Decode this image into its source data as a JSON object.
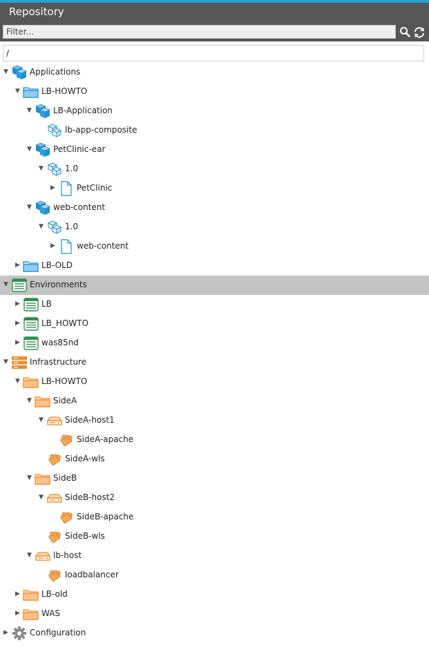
{
  "header": {
    "title": "Repository"
  },
  "filter": {
    "placeholder": "Filter..."
  },
  "path": {
    "value": "/"
  },
  "tree": [
    {
      "label": "Applications",
      "depth": 0,
      "icon": "application-icon",
      "expanded": true
    },
    {
      "label": "LB-HOWTO",
      "depth": 1,
      "icon": "blue-folder-icon",
      "expanded": true
    },
    {
      "label": "LB-Application",
      "depth": 2,
      "icon": "application-icon",
      "expanded": true
    },
    {
      "label": "lb-app-composite",
      "depth": 3,
      "icon": "package-icon",
      "expanded": null
    },
    {
      "label": "PetClinic-ear",
      "depth": 2,
      "icon": "application-icon",
      "expanded": true
    },
    {
      "label": "1.0",
      "depth": 3,
      "icon": "package-icon",
      "expanded": true
    },
    {
      "label": "PetClinic",
      "depth": 4,
      "icon": "file-icon",
      "expanded": false
    },
    {
      "label": "web-content",
      "depth": 2,
      "icon": "application-icon",
      "expanded": true
    },
    {
      "label": "1.0",
      "depth": 3,
      "icon": "package-icon",
      "expanded": true
    },
    {
      "label": "web-content",
      "depth": 4,
      "icon": "file-icon",
      "expanded": false
    },
    {
      "label": "LB-OLD",
      "depth": 1,
      "icon": "blue-folder-icon",
      "expanded": false
    },
    {
      "label": "Environments",
      "depth": 0,
      "icon": "environment-icon",
      "expanded": true,
      "selected": true
    },
    {
      "label": "LB",
      "depth": 1,
      "icon": "environment-icon",
      "expanded": false
    },
    {
      "label": "LB_HOWTO",
      "depth": 1,
      "icon": "environment-icon",
      "expanded": false
    },
    {
      "label": "was85nd",
      "depth": 1,
      "icon": "environment-icon",
      "expanded": false
    },
    {
      "label": "Infrastructure",
      "depth": 0,
      "icon": "infrastructure-icon",
      "expanded": true
    },
    {
      "label": "LB-HOWTO",
      "depth": 1,
      "icon": "orange-folder-icon",
      "expanded": true
    },
    {
      "label": "SideA",
      "depth": 2,
      "icon": "orange-folder-icon",
      "expanded": true
    },
    {
      "label": "SideA-host1",
      "depth": 3,
      "icon": "host-icon",
      "expanded": true
    },
    {
      "label": "SideA-apache",
      "depth": 4,
      "icon": "middleware-icon",
      "expanded": null
    },
    {
      "label": "SideA-wls",
      "depth": 3,
      "icon": "middleware-icon",
      "expanded": null
    },
    {
      "label": "SideB",
      "depth": 2,
      "icon": "orange-folder-icon",
      "expanded": true
    },
    {
      "label": "SideB-host2",
      "depth": 3,
      "icon": "host-icon",
      "expanded": true
    },
    {
      "label": "SideB-apache",
      "depth": 4,
      "icon": "middleware-icon",
      "expanded": null
    },
    {
      "label": "SideB-wls",
      "depth": 3,
      "icon": "middleware-icon",
      "expanded": null
    },
    {
      "label": "lb-host",
      "depth": 2,
      "icon": "host-icon",
      "expanded": true
    },
    {
      "label": "loadbalancer",
      "depth": 3,
      "icon": "middleware-icon",
      "expanded": null
    },
    {
      "label": "LB-old",
      "depth": 1,
      "icon": "orange-folder-icon",
      "expanded": false
    },
    {
      "label": "WAS",
      "depth": 1,
      "icon": "orange-folder-icon",
      "expanded": false
    },
    {
      "label": "Configuration",
      "depth": 0,
      "icon": "gear-icon",
      "expanded": false
    }
  ],
  "colors": {
    "header": "#565656",
    "accent": "#2a9fd6",
    "selected_row": "#c3c3c3",
    "application_blue": "#1f8fd0",
    "environment_green": "#2f8f4e",
    "infrastructure_orange": "#f08a2a",
    "gear_gray": "#8a8a8a"
  }
}
